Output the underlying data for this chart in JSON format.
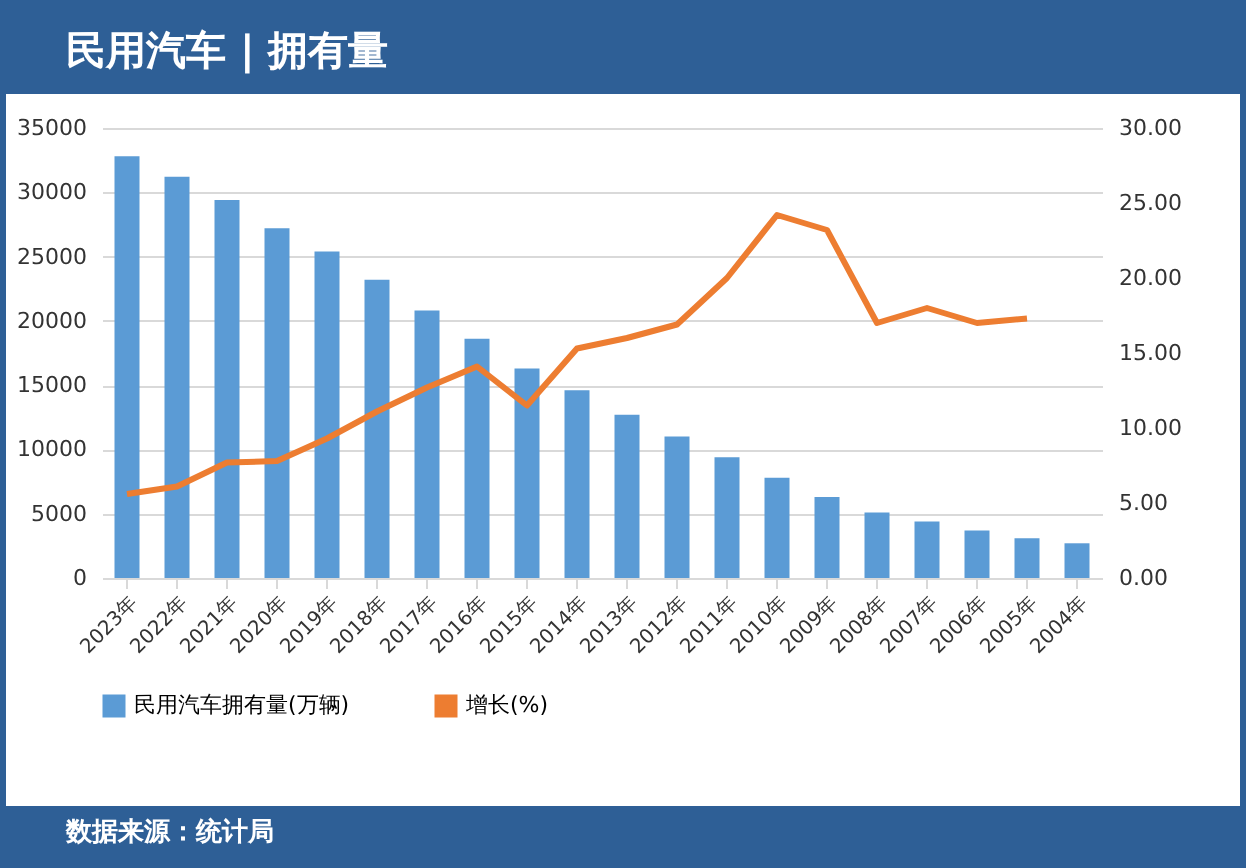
{
  "chart_data": {
    "type": "bar",
    "title": "民用汽车 | 拥有量",
    "categories": [
      "2023年",
      "2022年",
      "2021年",
      "2020年",
      "2019年",
      "2018年",
      "2017年",
      "2016年",
      "2015年",
      "2014年",
      "2013年",
      "2012年",
      "2011年",
      "2010年",
      "2009年",
      "2008年",
      "2007年",
      "2006年",
      "2005年",
      "2004年"
    ],
    "series": [
      {
        "name": "民用汽车拥有量(万辆)",
        "color": "#5b9bd5",
        "values": [
          32800,
          31200,
          29400,
          27200,
          25400,
          23200,
          20800,
          18600,
          16300,
          14600,
          12700,
          11000,
          9400,
          7800,
          6300,
          5100,
          4400,
          3700,
          3100,
          2700
        ]
      },
      {
        "name": "增长(%)",
        "type": "line",
        "axis": "y2",
        "color": "#ed7d31",
        "values": [
          5.6,
          6.1,
          7.7,
          7.8,
          9.3,
          11.1,
          12.7,
          14.1,
          11.5,
          15.3,
          16.0,
          16.9,
          20.0,
          24.2,
          23.2,
          17.0,
          18.0,
          17.0,
          17.3,
          null
        ]
      }
    ],
    "ylim": [
      0,
      35000
    ],
    "yticks": [
      0,
      5000,
      10000,
      15000,
      20000,
      25000,
      30000,
      35000
    ],
    "y2lim": [
      0,
      30
    ],
    "y2ticks": [
      {
        "value": 0,
        "label": "0.00"
      },
      {
        "value": 5,
        "label": "5.00"
      },
      {
        "value": 10,
        "label": "10.00"
      },
      {
        "value": 15,
        "label": "15.00"
      },
      {
        "value": 20,
        "label": "20.00"
      },
      {
        "value": 25,
        "label": "25.00"
      },
      {
        "value": 30,
        "label": "30.00"
      }
    ],
    "grid": "y",
    "legend": "bottom",
    "marker": "none",
    "line_style": "solid",
    "annotations": [
      "数据来源：统计局"
    ]
  }
}
